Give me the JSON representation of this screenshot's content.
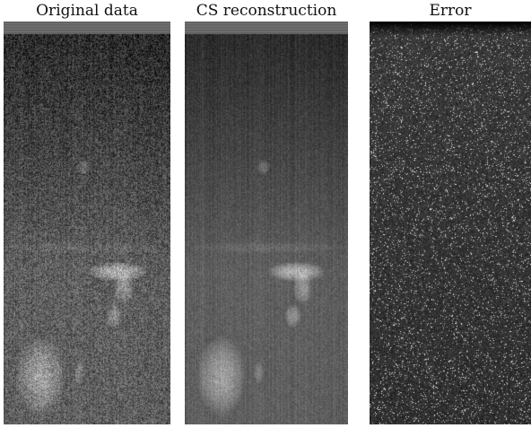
{
  "panels": [
    {
      "title": "Original data",
      "kind": "ultrasound"
    },
    {
      "title": "CS reconstruction",
      "kind": "ultrasound-smooth"
    },
    {
      "title": "Error",
      "kind": "noise"
    }
  ],
  "colors": {
    "background": "#ffffff",
    "title_text": "#111111"
  }
}
